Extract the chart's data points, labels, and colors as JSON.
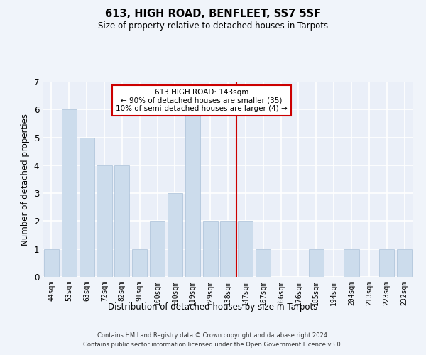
{
  "title1": "613, HIGH ROAD, BENFLEET, SS7 5SF",
  "title2": "Size of property relative to detached houses in Tarpots",
  "xlabel": "Distribution of detached houses by size in Tarpots",
  "ylabel": "Number of detached properties",
  "categories": [
    "44sqm",
    "53sqm",
    "63sqm",
    "72sqm",
    "82sqm",
    "91sqm",
    "100sqm",
    "110sqm",
    "119sqm",
    "129sqm",
    "138sqm",
    "147sqm",
    "157sqm",
    "166sqm",
    "176sqm",
    "185sqm",
    "194sqm",
    "204sqm",
    "213sqm",
    "223sqm",
    "232sqm"
  ],
  "values": [
    1,
    6,
    5,
    4,
    4,
    1,
    2,
    3,
    6,
    2,
    2,
    2,
    1,
    0,
    0,
    1,
    0,
    1,
    0,
    1,
    1
  ],
  "bar_color": "#ccdcec",
  "bar_edge_color": "#aac0d8",
  "vline_x_index": 10.5,
  "vline_color": "#cc0000",
  "annotation_box_text": "613 HIGH ROAD: 143sqm\n← 90% of detached houses are smaller (35)\n10% of semi-detached houses are larger (4) →",
  "ylim": [
    0,
    7
  ],
  "yticks": [
    0,
    1,
    2,
    3,
    4,
    5,
    6,
    7
  ],
  "bg_color": "#eaeff8",
  "grid_color": "#ffffff",
  "fig_bg_color": "#f0f4fa",
  "footer_line1": "Contains HM Land Registry data © Crown copyright and database right 2024.",
  "footer_line2": "Contains public sector information licensed under the Open Government Licence v3.0."
}
